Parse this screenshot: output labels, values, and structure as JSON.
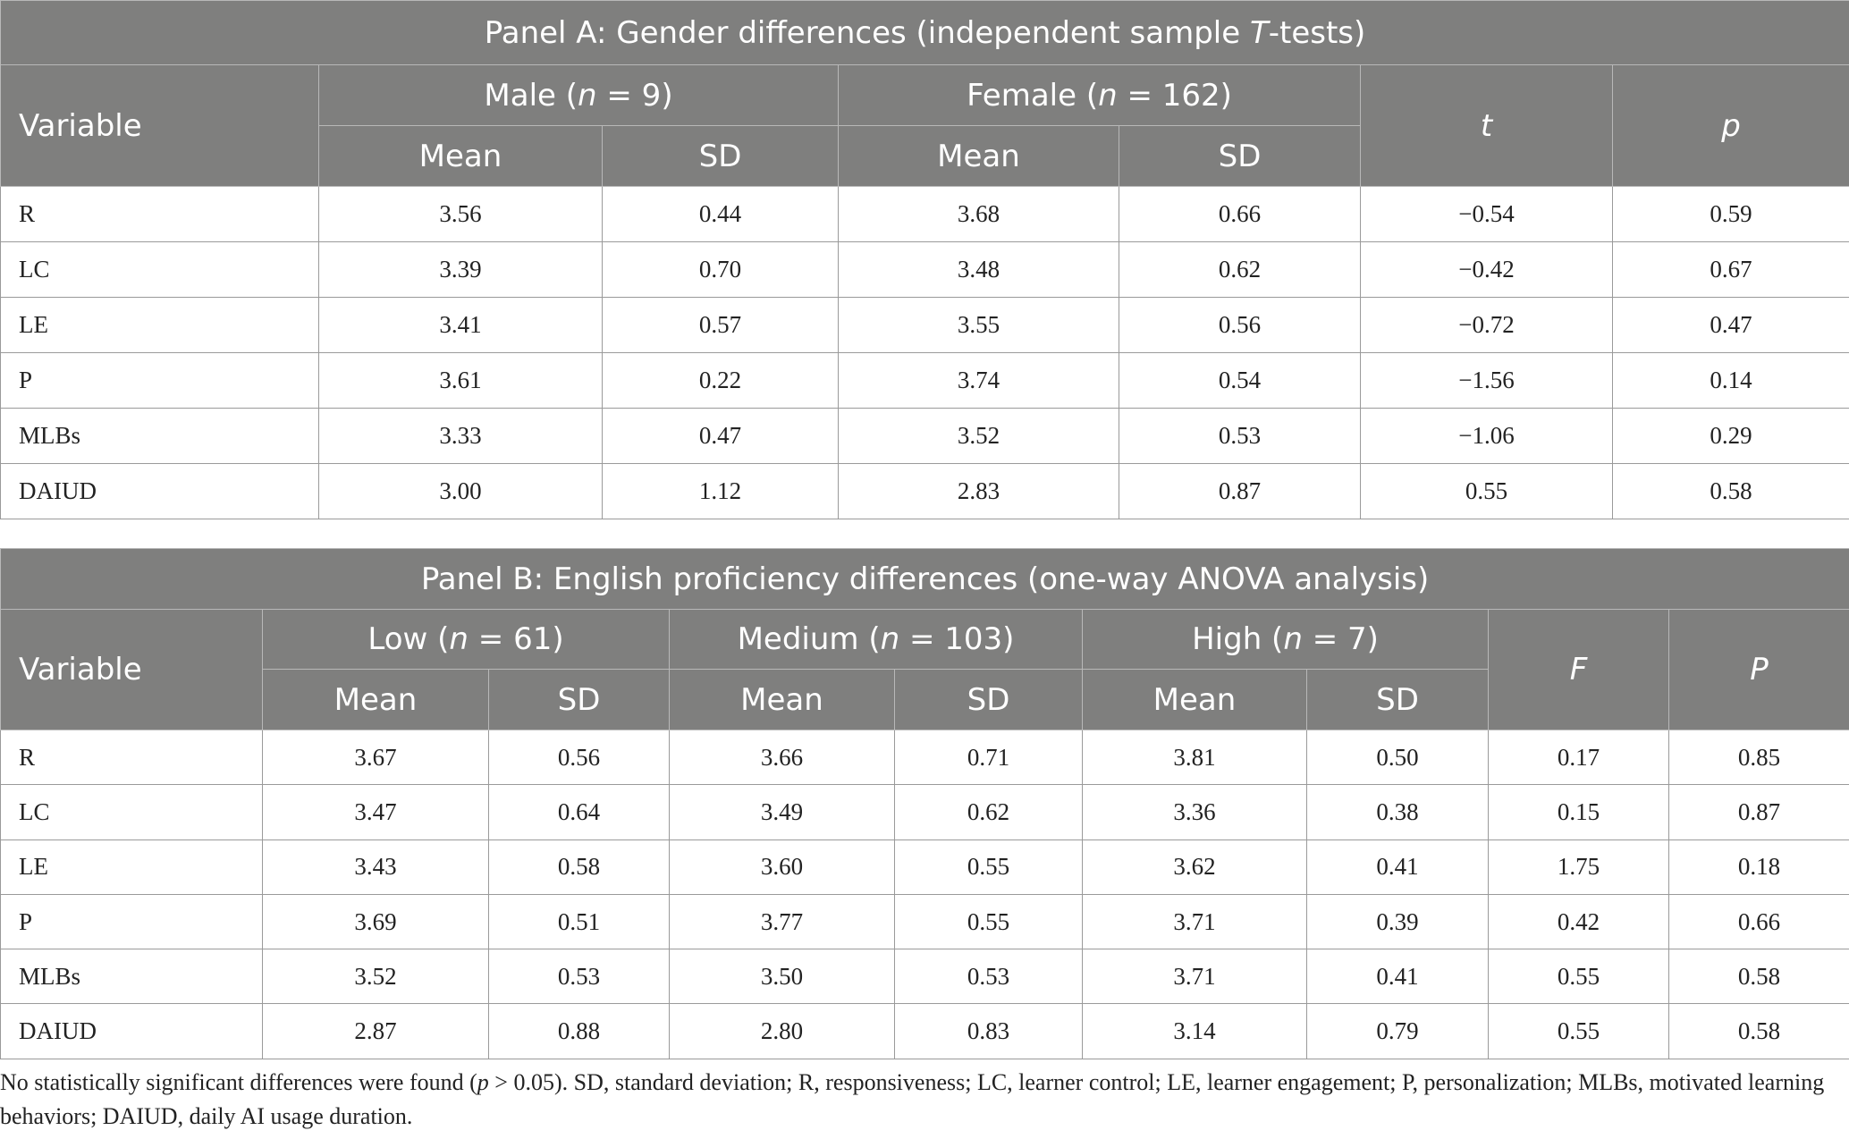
{
  "panel_a": {
    "title": [
      "Panel A: Gender differences (independent sample ",
      "T",
      "-tests)"
    ],
    "variable": "Variable",
    "groups": [
      [
        "Male (",
        "n",
        " = 9)"
      ],
      [
        "Female (",
        "n",
        " = 162)"
      ]
    ],
    "subheaders": [
      "Mean",
      "SD",
      "Mean",
      "SD"
    ],
    "stats": [
      "t",
      "p"
    ],
    "rows": [
      [
        "R",
        "3.56",
        "0.44",
        "3.68",
        "0.66",
        "−0.54",
        "0.59"
      ],
      [
        "LC",
        "3.39",
        "0.70",
        "3.48",
        "0.62",
        "−0.42",
        "0.67"
      ],
      [
        "LE",
        "3.41",
        "0.57",
        "3.55",
        "0.56",
        "−0.72",
        "0.47"
      ],
      [
        "P",
        "3.61",
        "0.22",
        "3.74",
        "0.54",
        "−1.56",
        "0.14"
      ],
      [
        "MLBs",
        "3.33",
        "0.47",
        "3.52",
        "0.53",
        "−1.06",
        "0.29"
      ],
      [
        "DAIUD",
        "3.00",
        "1.12",
        "2.83",
        "0.87",
        "0.55",
        "0.58"
      ]
    ]
  },
  "panel_b": {
    "title": [
      "Panel B: English proficiency differences (one-way ANOVA analysis)"
    ],
    "variable": "Variable",
    "groups": [
      [
        "Low (",
        "n",
        " = 61)"
      ],
      [
        "Medium (",
        "n",
        " = 103)"
      ],
      [
        "High (",
        "n",
        " = 7)"
      ]
    ],
    "subheaders": [
      "Mean",
      "SD",
      "Mean",
      "SD",
      "Mean",
      "SD"
    ],
    "stats": [
      "F",
      "P"
    ],
    "rows": [
      [
        "R",
        "3.67",
        "0.56",
        "3.66",
        "0.71",
        "3.81",
        "0.50",
        "0.17",
        "0.85"
      ],
      [
        "LC",
        "3.47",
        "0.64",
        "3.49",
        "0.62",
        "3.36",
        "0.38",
        "0.15",
        "0.87"
      ],
      [
        "LE",
        "3.43",
        "0.58",
        "3.60",
        "0.55",
        "3.62",
        "0.41",
        "1.75",
        "0.18"
      ],
      [
        "P",
        "3.69",
        "0.51",
        "3.77",
        "0.55",
        "3.71",
        "0.39",
        "0.42",
        "0.66"
      ],
      [
        "MLBs",
        "3.52",
        "0.53",
        "3.50",
        "0.53",
        "3.71",
        "0.41",
        "0.55",
        "0.58"
      ],
      [
        "DAIUD",
        "2.87",
        "0.88",
        "2.80",
        "0.83",
        "3.14",
        "0.79",
        "0.55",
        "0.58"
      ]
    ]
  },
  "footnote": [
    "No statistically significant differences were found (",
    "p",
    " > 0.05). SD, standard deviation; R, responsiveness; LC, learner control; LE, learner engagement; P, personalization; MLBs, motivated learning behaviors; DAIUD, daily AI usage duration."
  ]
}
